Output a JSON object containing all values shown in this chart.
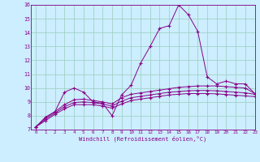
{
  "x": [
    0,
    1,
    2,
    3,
    4,
    5,
    6,
    7,
    8,
    9,
    10,
    11,
    12,
    13,
    14,
    15,
    16,
    17,
    18,
    19,
    20,
    21,
    22,
    23
  ],
  "line1": [
    7.2,
    7.9,
    8.3,
    9.7,
    10.0,
    9.7,
    9.0,
    8.9,
    8.0,
    9.5,
    10.2,
    11.8,
    13.0,
    14.3,
    14.5,
    16.0,
    15.3,
    14.1,
    10.8,
    10.3,
    10.5,
    10.3,
    10.3,
    9.6
  ],
  "line2": [
    7.2,
    7.85,
    8.3,
    8.8,
    9.15,
    9.2,
    9.1,
    9.0,
    8.85,
    9.3,
    9.55,
    9.65,
    9.75,
    9.85,
    9.95,
    10.05,
    10.1,
    10.15,
    10.15,
    10.15,
    10.1,
    10.05,
    10.0,
    9.6
  ],
  "line3": [
    7.2,
    7.75,
    8.2,
    8.65,
    8.95,
    9.0,
    8.95,
    8.85,
    8.7,
    9.05,
    9.3,
    9.4,
    9.5,
    9.6,
    9.7,
    9.75,
    9.8,
    9.82,
    9.82,
    9.8,
    9.75,
    9.7,
    9.65,
    9.55
  ],
  "line4": [
    7.2,
    7.65,
    8.1,
    8.5,
    8.8,
    8.8,
    8.8,
    8.7,
    8.55,
    8.85,
    9.1,
    9.2,
    9.3,
    9.4,
    9.5,
    9.55,
    9.6,
    9.6,
    9.6,
    9.58,
    9.53,
    9.48,
    9.43,
    9.38
  ],
  "color": "#880088",
  "bg_color": "#cceeff",
  "grid_color": "#99ccbb",
  "xlabel": "Windchill (Refroidissement éolien,°C)",
  "ylim": [
    7,
    16
  ],
  "xlim": [
    -0.5,
    23
  ],
  "yticks": [
    7,
    8,
    9,
    10,
    11,
    12,
    13,
    14,
    15,
    16
  ],
  "xticks": [
    0,
    1,
    2,
    3,
    4,
    5,
    6,
    7,
    8,
    9,
    10,
    11,
    12,
    13,
    14,
    15,
    16,
    17,
    18,
    19,
    20,
    21,
    22,
    23
  ]
}
